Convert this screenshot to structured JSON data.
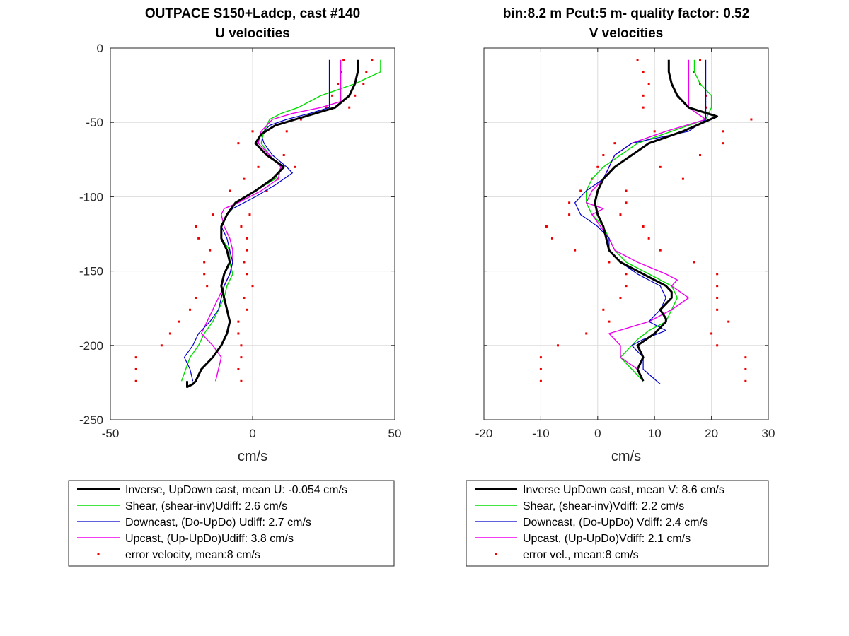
{
  "colors": {
    "inverse": "#000000",
    "shear": "#00dd00",
    "downcast": "#0000cc",
    "upcast": "#ee00ee",
    "error": "#ee0000",
    "grid": "#dcdcdc",
    "axis": "#262626"
  },
  "chart_data": [
    {
      "type": "line",
      "title": "OUTPACE S150+Ladcp, cast #140",
      "subtitle": "U velocities",
      "xlabel": "cm/s",
      "ylabel": "",
      "xlim": [
        -50,
        50
      ],
      "ylim": [
        -250,
        0
      ],
      "xticks": [
        -50,
        0,
        50
      ],
      "yticks": [
        0,
        -50,
        -100,
        -150,
        -200,
        -250
      ],
      "xtick_labels": [
        "-50",
        "0",
        "50"
      ],
      "ytick_labels": [
        "0",
        "-50",
        "-100",
        "-150",
        "-200",
        "-250"
      ],
      "grid": true,
      "legend_position": "below",
      "series": [
        {
          "name": "Inverse, UpDown cast, mean U:  -0.054 cm/s",
          "style": "inverse",
          "x": [
            37,
            37,
            36,
            34,
            29,
            22,
            15,
            8,
            3,
            1,
            5,
            11,
            7,
            1,
            -6,
            -9,
            -11,
            -11,
            -9,
            -8,
            -10,
            -11,
            -10,
            -9,
            -8,
            -9,
            -11,
            -14,
            -18,
            -20,
            -21,
            -23,
            -23
          ],
          "y": [
            -8,
            -16,
            -24,
            -32,
            -40,
            -44,
            -48,
            -52,
            -58,
            -64,
            -72,
            -80,
            -88,
            -96,
            -104,
            -112,
            -120,
            -128,
            -136,
            -144,
            -152,
            -160,
            -168,
            -176,
            -184,
            -192,
            -200,
            -208,
            -216,
            -224,
            -226,
            -228,
            -224
          ]
        },
        {
          "name": "Shear, (shear-inv)Udiff:  2.6 cm/s",
          "style": "shear",
          "x": [
            45,
            45,
            36,
            24,
            16,
            10,
            6,
            4,
            3,
            6,
            10,
            8,
            1,
            -6,
            -9,
            -11,
            -11,
            -8,
            -8,
            -7,
            -9,
            -10,
            -12,
            -14,
            -17,
            -19,
            -22,
            -25
          ],
          "y": [
            -8,
            -16,
            -24,
            -32,
            -40,
            -44,
            -48,
            -56,
            -64,
            -72,
            -80,
            -88,
            -96,
            -104,
            -112,
            -120,
            -128,
            -136,
            -144,
            -152,
            -160,
            -168,
            -176,
            -184,
            -192,
            -200,
            -208,
            -224
          ]
        },
        {
          "name": "Downcast, (Do-UpDo) Udiff:  2.7 cm/s",
          "style": "downcast",
          "x": [
            27,
            27,
            27,
            27,
            20,
            12,
            6,
            3,
            4,
            7,
            12,
            14,
            8,
            1,
            -7,
            -9,
            -11,
            -9,
            -8,
            -7,
            -8,
            -10,
            -11,
            -12,
            -15,
            -19,
            -21,
            -24,
            -22,
            -21
          ],
          "y": [
            -8,
            -16,
            -32,
            -40,
            -44,
            -48,
            -52,
            -58,
            -64,
            -72,
            -80,
            -84,
            -92,
            -100,
            -108,
            -112,
            -120,
            -128,
            -136,
            -144,
            -152,
            -160,
            -168,
            -176,
            -184,
            -192,
            -200,
            -208,
            -216,
            -224
          ]
        },
        {
          "name": "Upcast, (Up-UpDo)Udiff:  3.8 cm/s",
          "style": "upcast",
          "x": [
            31,
            31,
            31,
            31,
            24,
            14,
            7,
            3,
            2,
            6,
            10,
            9,
            3,
            -5,
            -10,
            -11,
            -10,
            -8,
            -7,
            -7,
            -8,
            -10,
            -12,
            -14,
            -16,
            -18,
            -14,
            -11,
            -13
          ],
          "y": [
            -8,
            -16,
            -32,
            -36,
            -40,
            -44,
            -48,
            -56,
            -64,
            -72,
            -80,
            -88,
            -96,
            -104,
            -108,
            -112,
            -120,
            -128,
            -136,
            -144,
            -152,
            -160,
            -168,
            -176,
            -184,
            -192,
            -200,
            -208,
            -224
          ]
        },
        {
          "name": "error velocity, mean:8 cm/s",
          "style": "error",
          "points": [
            [
              32,
              -8
            ],
            [
              42,
              -8
            ],
            [
              31,
              -16
            ],
            [
              40,
              -16
            ],
            [
              30,
              -24
            ],
            [
              39,
              -24
            ],
            [
              28,
              -32
            ],
            [
              36,
              -32
            ],
            [
              26,
              -40
            ],
            [
              34,
              -40
            ],
            [
              17,
              -48
            ],
            [
              12,
              -56
            ],
            [
              0,
              -56
            ],
            [
              -5,
              -64
            ],
            [
              11,
              -72
            ],
            [
              5,
              -72
            ],
            [
              15,
              -80
            ],
            [
              2,
              -80
            ],
            [
              9,
              -88
            ],
            [
              -3,
              -88
            ],
            [
              5,
              -96
            ],
            [
              -8,
              -96
            ],
            [
              -14,
              -112
            ],
            [
              -1,
              -112
            ],
            [
              -20,
              -120
            ],
            [
              -4,
              -120
            ],
            [
              -19,
              -128
            ],
            [
              -2,
              -128
            ],
            [
              -15,
              -136
            ],
            [
              -2,
              -136
            ],
            [
              -17,
              -144
            ],
            [
              -3,
              -144
            ],
            [
              -17,
              -152
            ],
            [
              -2,
              -152
            ],
            [
              -16,
              -160
            ],
            [
              0,
              -160
            ],
            [
              -20,
              -168
            ],
            [
              -3,
              -168
            ],
            [
              -22,
              -176
            ],
            [
              -2,
              -176
            ],
            [
              -26,
              -184
            ],
            [
              -5,
              -184
            ],
            [
              -29,
              -192
            ],
            [
              -5,
              -192
            ],
            [
              -32,
              -200
            ],
            [
              -4,
              -200
            ],
            [
              -41,
              -208
            ],
            [
              -4,
              -208
            ],
            [
              -41,
              -216
            ],
            [
              -5,
              -216
            ],
            [
              -41,
              -224
            ],
            [
              -4,
              -224
            ]
          ]
        }
      ]
    },
    {
      "type": "line",
      "title": "bin:8.2 m  Pcut:5 m- quality factor:  0.52",
      "subtitle": "V velocities",
      "xlabel": "cm/s",
      "ylabel": "",
      "xlim": [
        -20,
        30
      ],
      "ylim": [
        -250,
        0
      ],
      "xticks": [
        -20,
        -10,
        0,
        10,
        20,
        30
      ],
      "yticks": [
        0,
        -50,
        -100,
        -150,
        -200,
        -250
      ],
      "xtick_labels": [
        "-20",
        "-10",
        "0",
        "10",
        "20",
        "30"
      ],
      "ytick_labels": [],
      "grid": true,
      "legend_position": "below",
      "series": [
        {
          "name": "Inverse UpDown cast, mean V:  8.6 cm/s",
          "style": "inverse",
          "x": [
            12.5,
            12.5,
            13,
            14,
            16,
            21,
            15,
            9,
            6,
            3,
            1,
            0,
            -0.5,
            0,
            1,
            1.5,
            2,
            4,
            8,
            12,
            13,
            13,
            11,
            12,
            12,
            10,
            7,
            8,
            7,
            8
          ],
          "y": [
            -8,
            -16,
            -24,
            -32,
            -40,
            -46,
            -56,
            -64,
            -72,
            -80,
            -88,
            -96,
            -104,
            -112,
            -120,
            -128,
            -136,
            -144,
            -152,
            -160,
            -164,
            -168,
            -176,
            -182,
            -184,
            -192,
            -200,
            -208,
            -216,
            -224
          ]
        },
        {
          "name": "Shear, (shear-inv)Vdiff:  2.2 cm/s",
          "style": "shear",
          "x": [
            17,
            17,
            18,
            20,
            20,
            19,
            13,
            7,
            4,
            1,
            -1,
            -2,
            -2,
            -1,
            1,
            2,
            3,
            5,
            9,
            13,
            14,
            13,
            12,
            9,
            7,
            5,
            4,
            6,
            8
          ],
          "y": [
            -8,
            -16,
            -24,
            -32,
            -40,
            -48,
            -56,
            -64,
            -72,
            -80,
            -88,
            -96,
            -104,
            -112,
            -120,
            -128,
            -136,
            -144,
            -152,
            -160,
            -168,
            -176,
            -184,
            -190,
            -196,
            -204,
            -208,
            -216,
            -224
          ]
        },
        {
          "name": "Downcast, (Do-UpDo) Vdiff:  2.4 cm/s",
          "style": "downcast",
          "x": [
            19,
            19,
            19,
            19,
            19,
            19,
            16,
            6,
            3,
            2,
            1,
            -2,
            -4,
            -3,
            0,
            2,
            2,
            4,
            7,
            11,
            12,
            11,
            9,
            12,
            8,
            6,
            8,
            8,
            11
          ],
          "y": [
            -8,
            -16,
            -24,
            -32,
            -40,
            -48,
            -56,
            -64,
            -72,
            -80,
            -88,
            -96,
            -104,
            -112,
            -120,
            -128,
            -136,
            -144,
            -152,
            -160,
            -168,
            -176,
            -184,
            -190,
            -196,
            -200,
            -208,
            -216,
            -226
          ]
        },
        {
          "name": "Upcast, (Up-UpDo)Vdiff:  2.1 cm/s",
          "style": "upcast",
          "x": [
            16,
            16,
            16,
            16,
            16,
            19,
            12,
            6,
            3,
            2,
            1,
            -1,
            -2,
            1,
            -1,
            2,
            3,
            7,
            12,
            14,
            13,
            16,
            13,
            9,
            2,
            4,
            4,
            7
          ],
          "y": [
            -8,
            -16,
            -24,
            -32,
            -40,
            -48,
            -56,
            -64,
            -72,
            -80,
            -88,
            -96,
            -104,
            -108,
            -112,
            -128,
            -136,
            -144,
            -152,
            -156,
            -160,
            -168,
            -176,
            -184,
            -192,
            -200,
            -208,
            -216
          ]
        },
        {
          "name": "error vel., mean:8 cm/s",
          "style": "error",
          "points": [
            [
              7,
              -8
            ],
            [
              18,
              -8
            ],
            [
              8,
              -16
            ],
            [
              17,
              -16
            ],
            [
              9,
              -24
            ],
            [
              18,
              -24
            ],
            [
              8,
              -32
            ],
            [
              19,
              -32
            ],
            [
              8,
              -40
            ],
            [
              19,
              -40
            ],
            [
              27,
              -48
            ],
            [
              10,
              -56
            ],
            [
              22,
              -56
            ],
            [
              3,
              -64
            ],
            [
              22,
              -64
            ],
            [
              1,
              -72
            ],
            [
              18,
              -72
            ],
            [
              0,
              -80
            ],
            [
              11,
              -80
            ],
            [
              -1,
              -88
            ],
            [
              15,
              -88
            ],
            [
              -3,
              -96
            ],
            [
              5,
              -96
            ],
            [
              -5,
              -104
            ],
            [
              5,
              -104
            ],
            [
              -5,
              -112
            ],
            [
              4,
              -112
            ],
            [
              -9,
              -120
            ],
            [
              8,
              -120
            ],
            [
              -8,
              -128
            ],
            [
              9,
              -128
            ],
            [
              -4,
              -136
            ],
            [
              11,
              -136
            ],
            [
              2,
              -144
            ],
            [
              17,
              -144
            ],
            [
              5,
              -152
            ],
            [
              21,
              -152
            ],
            [
              5,
              -160
            ],
            [
              21,
              -160
            ],
            [
              4,
              -168
            ],
            [
              21,
              -168
            ],
            [
              1,
              -176
            ],
            [
              21,
              -176
            ],
            [
              2,
              -184
            ],
            [
              23,
              -184
            ],
            [
              -2,
              -192
            ],
            [
              20,
              -192
            ],
            [
              -7,
              -200
            ],
            [
              21,
              -200
            ],
            [
              -10,
              -208
            ],
            [
              26,
              -208
            ],
            [
              -10,
              -216
            ],
            [
              26,
              -216
            ],
            [
              -10,
              -224
            ],
            [
              26,
              -224
            ]
          ]
        }
      ]
    }
  ]
}
